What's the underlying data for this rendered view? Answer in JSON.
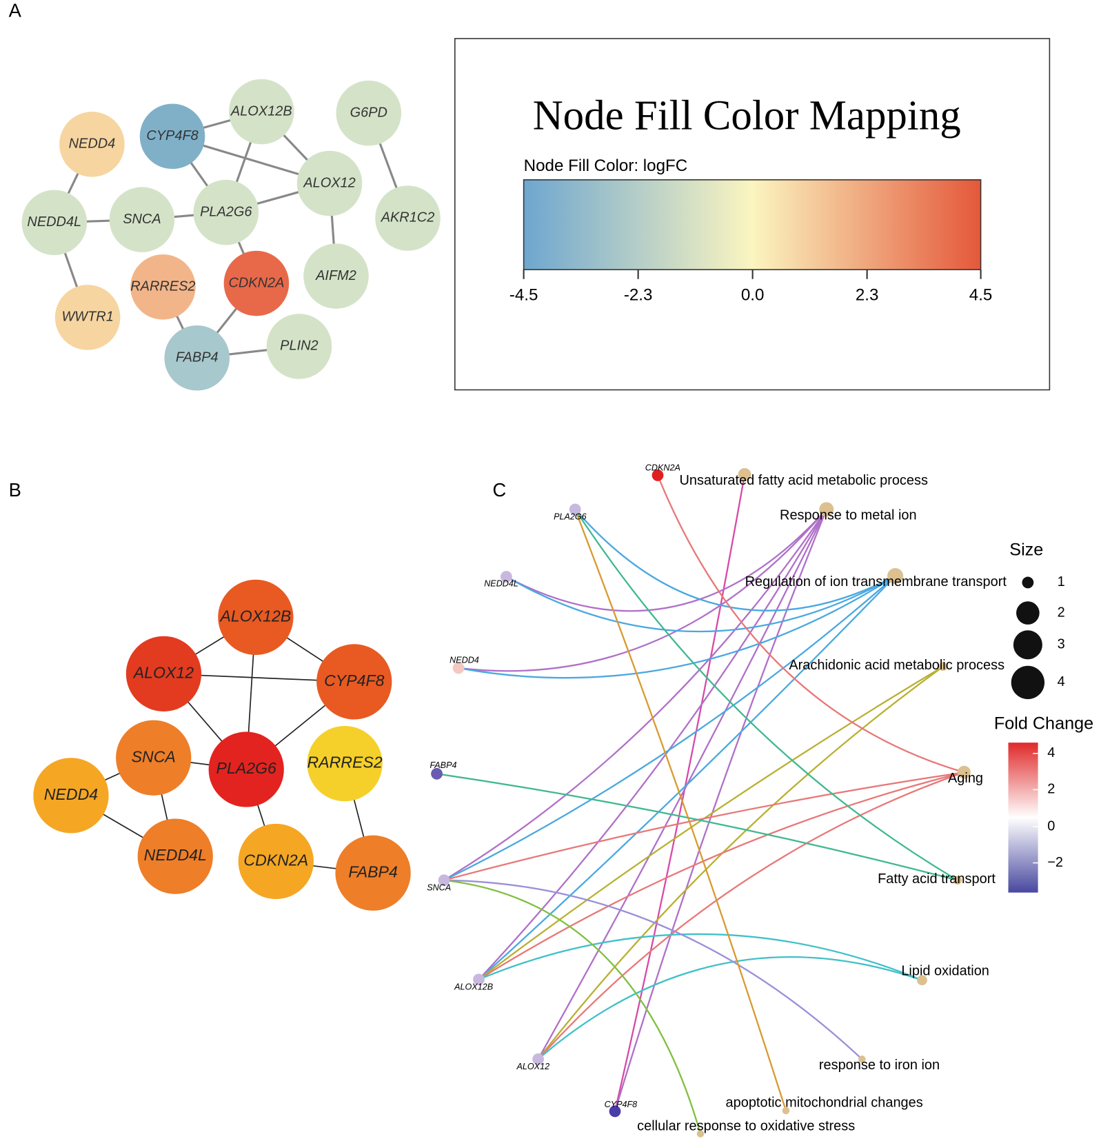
{
  "panels": {
    "a": "A",
    "b": "B",
    "c": "C"
  },
  "network_a": {
    "nodes": [
      "NEDD4",
      "CYP4F8",
      "ALOX12B",
      "G6PD",
      "NEDD4L",
      "SNCA",
      "PLA2G6",
      "ALOX12",
      "AKR1C2",
      "RARRES2",
      "CDKN2A",
      "AIFM2",
      "WWTR1",
      "FABP4",
      "PLIN2"
    ]
  },
  "legend_a": {
    "title": "Node Fill Color Mapping",
    "subtitle": "Node Fill Color:  logFC",
    "ticks": [
      "-4.5",
      "-2.3",
      "0.0",
      "2.3",
      "4.5"
    ]
  },
  "network_b": {
    "nodes": [
      "ALOX12B",
      "ALOX12",
      "CYP4F8",
      "SNCA",
      "PLA2G6",
      "RARRES2",
      "NEDD4",
      "NEDD4L",
      "CDKN2A",
      "FABP4"
    ]
  },
  "panel_c": {
    "genes": [
      "CDKN2A",
      "PLA2G6",
      "NEDD4L",
      "NEDD4",
      "FABP4",
      "SNCA",
      "ALOX12B",
      "ALOX12",
      "CYP4F8"
    ],
    "terms": [
      "Unsaturated fatty acid metabolic process",
      "Response to metal ion",
      "Regulation of ion transmembrane transport",
      "Arachidonic acid metabolic process",
      "Aging",
      "Fatty acid transport",
      "Lipid oxidation",
      "response to iron ion",
      "apoptotic mitochondrial changes",
      "cellular response to oxidative stress"
    ],
    "size_legend": {
      "title": "Size",
      "ticks": [
        "1",
        "2",
        "3",
        "4"
      ]
    },
    "fold_legend": {
      "title": "Fold Change",
      "ticks": [
        "4",
        "2",
        "0",
        "−2"
      ]
    }
  }
}
